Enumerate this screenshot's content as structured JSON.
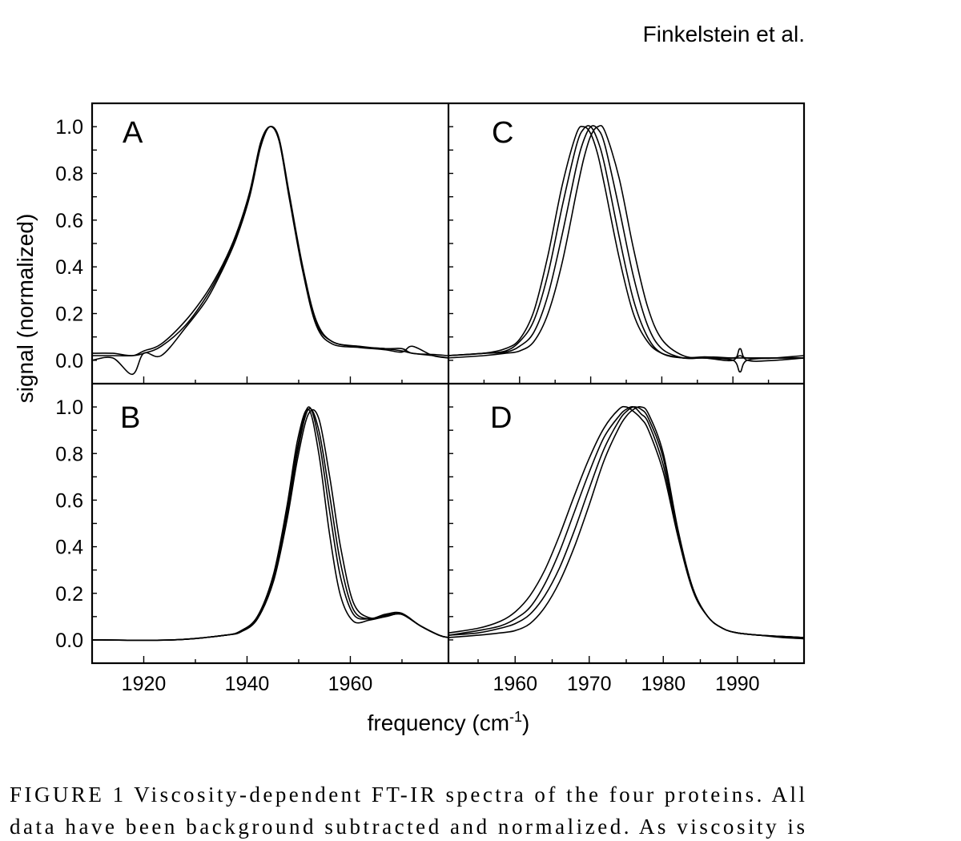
{
  "header": {
    "running_head": "Finkelstein et al."
  },
  "figure": {
    "ylabel": "signal (normalized)",
    "xlabel": {
      "main": "frequency (cm",
      "superscript": "-1",
      "end": ")"
    },
    "y_tick_labels": [
      "0.0",
      "0.2",
      "0.4",
      "0.6",
      "0.8",
      "1.0"
    ],
    "left_x_tick_labels": [
      "1920",
      "1940",
      "1960"
    ],
    "right_x_tick_labels": [
      "1960",
      "1970",
      "1980",
      "1990"
    ]
  },
  "caption": {
    "lines": [
      "FIGURE 1   Viscosity-dependent FT-IR spectra of the four proteins. All",
      "data have been background subtracted and normalized. As viscosity is"
    ]
  },
  "chart_data": [
    {
      "type": "line",
      "panel": "A",
      "xlim": [
        1910,
        1979
      ],
      "ylim": [
        -0.1,
        1.1
      ],
      "x_ticks_major": [
        1920,
        1940,
        1960
      ],
      "x_ticks_minor": [
        1930,
        1950,
        1970
      ],
      "x": [
        1910,
        1914,
        1917.8,
        1920,
        1923.4,
        1928.1,
        1932.2,
        1935.3,
        1937.9,
        1940.5,
        1942.6,
        1944.4,
        1946.2,
        1948.2,
        1950.8,
        1953.4,
        1956.5,
        1961.7,
        1966.8,
        1970,
        1972,
        1976,
        1979
      ],
      "series": [
        {
          "values": [
            0.02,
            0.02,
            0.02,
            0.03,
            0.06,
            0.15,
            0.275,
            0.4,
            0.53,
            0.71,
            0.92,
            1.0,
            0.94,
            0.7,
            0.39,
            0.16,
            0.08,
            0.057,
            0.05,
            0.04,
            0.03,
            0.02,
            0.01
          ]
        },
        {
          "values": [
            0.03,
            0.03,
            0.02,
            0.04,
            0.07,
            0.17,
            0.29,
            0.41,
            0.54,
            0.72,
            0.93,
            1.0,
            0.95,
            0.71,
            0.4,
            0.17,
            0.08,
            0.06,
            0.05,
            0.05,
            0.03,
            0.025,
            0.02
          ]
        },
        {
          "values": [
            0.0,
            0.01,
            -0.06,
            0.03,
            0.02,
            0.14,
            0.26,
            0.39,
            0.52,
            0.7,
            0.91,
            1.0,
            0.94,
            0.69,
            0.38,
            0.15,
            0.07,
            0.055,
            0.045,
            0.035,
            0.06,
            0.02,
            0.01
          ]
        }
      ]
    },
    {
      "type": "line",
      "panel": "B",
      "xlim": [
        1910,
        1979
      ],
      "ylim": [
        -0.1,
        1.1
      ],
      "x_ticks_major": [
        1920,
        1940,
        1960
      ],
      "x_ticks_minor": [
        1930,
        1950,
        1970
      ],
      "x": [
        1910,
        1925.5,
        1935.8,
        1938.9,
        1942,
        1945.1,
        1947.7,
        1949.8,
        1951.9,
        1953.9,
        1956,
        1958.1,
        1960.6,
        1963.7,
        1966.8,
        1969.9,
        1973.6,
        1977.2,
        1979
      ],
      "series": [
        {
          "values": [
            0,
            0,
            0.02,
            0.04,
            0.1,
            0.28,
            0.57,
            0.86,
            0.99,
            0.8,
            0.45,
            0.19,
            0.08,
            0.085,
            0.1,
            0.11,
            0.06,
            0.02,
            0.01
          ]
        },
        {
          "values": [
            0,
            0,
            0.02,
            0.04,
            0.1,
            0.27,
            0.55,
            0.83,
            1.0,
            0.86,
            0.55,
            0.27,
            0.11,
            0.09,
            0.1,
            0.11,
            0.06,
            0.02,
            0.01
          ]
        },
        {
          "values": [
            0,
            0,
            0.02,
            0.04,
            0.09,
            0.26,
            0.53,
            0.81,
            0.99,
            0.9,
            0.62,
            0.33,
            0.13,
            0.09,
            0.105,
            0.11,
            0.06,
            0.02,
            0.01
          ]
        },
        {
          "values": [
            0,
            0,
            0.02,
            0.035,
            0.09,
            0.25,
            0.51,
            0.78,
            0.97,
            0.95,
            0.7,
            0.4,
            0.16,
            0.095,
            0.11,
            0.115,
            0.06,
            0.02,
            0.01
          ]
        }
      ]
    },
    {
      "type": "line",
      "panel": "C",
      "xlim": [
        1950,
        2000
      ],
      "ylim": [
        -0.1,
        1.1
      ],
      "x_ticks_major": [
        1960,
        1970,
        1980,
        1990
      ],
      "x_ticks_minor": [
        1955,
        1965,
        1975,
        1985,
        1995
      ],
      "x": [
        1950,
        1955,
        1958,
        1960,
        1962,
        1964,
        1966,
        1968,
        1969,
        1970,
        1971,
        1972,
        1974,
        1976,
        1978,
        1980,
        1983,
        1986,
        1990,
        1991,
        1992,
        1996,
        2000
      ],
      "series": [
        {
          "values": [
            0.02,
            0.03,
            0.05,
            0.09,
            0.21,
            0.45,
            0.75,
            0.97,
            1.0,
            0.97,
            0.88,
            0.74,
            0.44,
            0.2,
            0.08,
            0.03,
            0.01,
            0.01,
            0.01,
            0.02,
            0.01,
            0.01,
            0.01
          ]
        },
        {
          "values": [
            0.02,
            0.03,
            0.04,
            0.08,
            0.17,
            0.37,
            0.66,
            0.92,
            0.99,
            1.0,
            0.94,
            0.83,
            0.53,
            0.26,
            0.1,
            0.03,
            0.01,
            0.015,
            0.01,
            0.01,
            0.01,
            0.01,
            0.01
          ]
        },
        {
          "values": [
            0.02,
            0.03,
            0.035,
            0.06,
            0.12,
            0.28,
            0.54,
            0.83,
            0.94,
            1.0,
            0.99,
            0.92,
            0.65,
            0.36,
            0.15,
            0.05,
            0.01,
            0.01,
            0.0,
            0.05,
            0.0,
            0.0,
            0.01
          ]
        },
        {
          "values": [
            0.01,
            0.02,
            0.03,
            0.04,
            0.08,
            0.2,
            0.42,
            0.72,
            0.86,
            0.96,
            1.0,
            0.98,
            0.78,
            0.48,
            0.23,
            0.09,
            0.02,
            0.01,
            0.0,
            -0.05,
            0.0,
            0.01,
            0.02
          ]
        }
      ]
    },
    {
      "type": "line",
      "panel": "D",
      "xlim": [
        1951,
        1999
      ],
      "ylim": [
        -0.1,
        1.1
      ],
      "x_ticks_major": [
        1960,
        1970,
        1980,
        1990
      ],
      "x_ticks_minor": [
        1955,
        1965,
        1975,
        1985,
        1995
      ],
      "x": [
        1951,
        1955,
        1958,
        1960,
        1962,
        1964,
        1966,
        1968,
        1970,
        1972,
        1974,
        1975,
        1976,
        1977,
        1978,
        1980,
        1982,
        1984,
        1986,
        1988,
        1990,
        1993,
        1996,
        1999
      ],
      "series": [
        {
          "values": [
            0.03,
            0.05,
            0.08,
            0.12,
            0.19,
            0.3,
            0.45,
            0.62,
            0.78,
            0.91,
            0.99,
            1.0,
            0.98,
            0.95,
            0.9,
            0.72,
            0.44,
            0.21,
            0.1,
            0.05,
            0.03,
            0.02,
            0.015,
            0.01
          ]
        },
        {
          "values": [
            0.02,
            0.04,
            0.06,
            0.09,
            0.14,
            0.24,
            0.38,
            0.55,
            0.72,
            0.87,
            0.96,
            0.99,
            1.0,
            0.97,
            0.93,
            0.75,
            0.45,
            0.22,
            0.1,
            0.05,
            0.03,
            0.02,
            0.015,
            0.01
          ]
        },
        {
          "values": [
            0.02,
            0.03,
            0.05,
            0.07,
            0.11,
            0.19,
            0.31,
            0.47,
            0.65,
            0.82,
            0.94,
            0.98,
            1.0,
            0.99,
            0.95,
            0.78,
            0.46,
            0.22,
            0.1,
            0.05,
            0.03,
            0.02,
            0.015,
            0.01
          ]
        },
        {
          "values": [
            0.01,
            0.02,
            0.03,
            0.04,
            0.07,
            0.14,
            0.25,
            0.4,
            0.58,
            0.77,
            0.91,
            0.96,
            0.99,
            1.0,
            0.97,
            0.8,
            0.47,
            0.22,
            0.1,
            0.05,
            0.03,
            0.02,
            0.01,
            0.005
          ]
        }
      ]
    }
  ]
}
